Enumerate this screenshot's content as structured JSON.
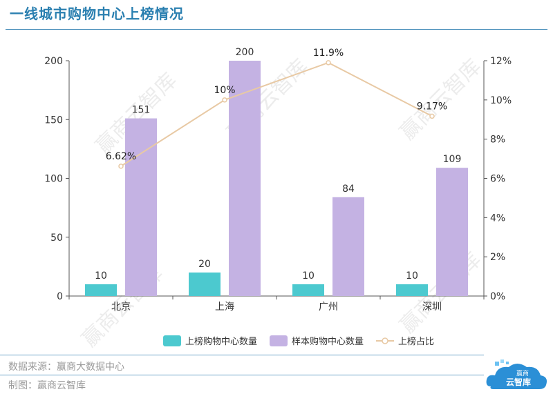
{
  "header": {
    "title": "一线城市购物中心上榜情况"
  },
  "chart_data": {
    "type": "bar",
    "categories": [
      "北京",
      "上海",
      "广州",
      "深圳"
    ],
    "series": [
      {
        "name": "上榜购物中心数量",
        "values": [
          10,
          20,
          10,
          10
        ],
        "color": "#4cc9cf",
        "axis": "left"
      },
      {
        "name": "样本购物中心数量",
        "values": [
          151,
          200,
          84,
          109
        ],
        "color": "#c4b2e3",
        "axis": "left"
      },
      {
        "name": "上榜占比",
        "type": "line",
        "values": [
          6.62,
          10,
          11.9,
          9.17
        ],
        "labels": [
          "6.62%",
          "10%",
          "11.9%",
          "9.17%"
        ],
        "color": "#e8c9a4",
        "axis": "right"
      }
    ],
    "y_left": {
      "range": [
        0,
        200
      ],
      "ticks": [
        0,
        50,
        100,
        150,
        200
      ]
    },
    "y_right": {
      "range": [
        0,
        12
      ],
      "ticks": [
        "0%",
        "2%",
        "4%",
        "6%",
        "8%",
        "10%",
        "12%"
      ]
    },
    "legend_position": "bottom",
    "grid": false
  },
  "footer": {
    "source": "数据来源：赢商大数据中心",
    "credit": "制图：赢商云智库"
  },
  "watermark": "赢商云智库",
  "logo": {
    "line1": "赢商",
    "line2": "云智库"
  }
}
